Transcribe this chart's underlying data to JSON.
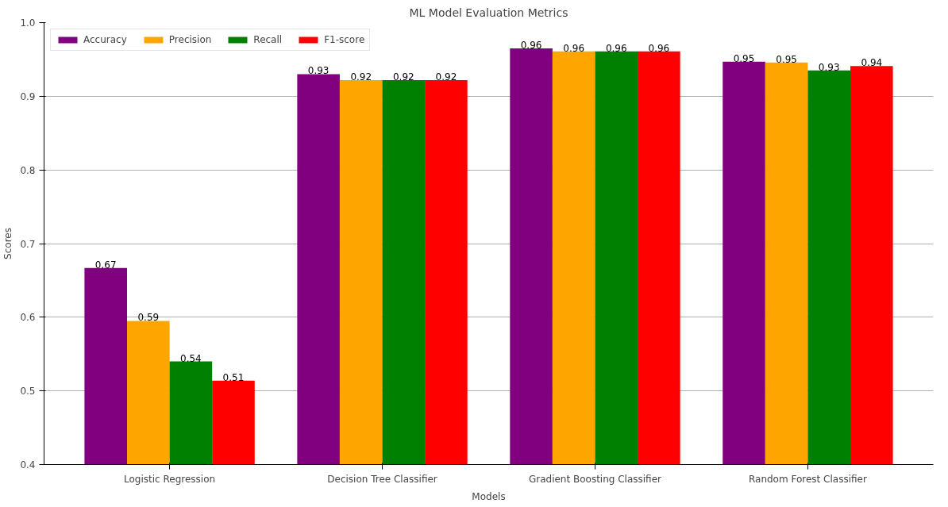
{
  "chart_data": {
    "type": "bar",
    "title": "ML Model Evaluation Metrics",
    "xlabel": "Models",
    "ylabel": "Scores",
    "categories": [
      "Logistic Regression",
      "Decision Tree Classifier",
      "Gradient Boosting Classifier",
      "Random Forest Classifier"
    ],
    "series": [
      {
        "name": "Accuracy",
        "color": "#800080",
        "values": [
          0.667,
          0.93,
          0.965,
          0.947
        ],
        "value_labels": [
          "0.67",
          "0.93",
          "0.96",
          "0.95"
        ]
      },
      {
        "name": "Precision",
        "color": "#ffa500",
        "values": [
          0.595,
          0.922,
          0.961,
          0.946
        ],
        "value_labels": [
          "0.59",
          "0.92",
          "0.96",
          "0.95"
        ]
      },
      {
        "name": "Recall",
        "color": "#008000",
        "values": [
          0.54,
          0.922,
          0.961,
          0.935
        ],
        "value_labels": [
          "0.54",
          "0.92",
          "0.96",
          "0.93"
        ]
      },
      {
        "name": "F1-score",
        "color": "#ff0000",
        "values": [
          0.514,
          0.922,
          0.961,
          0.941
        ],
        "value_labels": [
          "0.51",
          "0.92",
          "0.96",
          "0.94"
        ]
      }
    ],
    "ylim": [
      0.4,
      1.0
    ],
    "yticks": [
      0.4,
      0.5,
      0.6,
      0.7,
      0.8,
      0.9,
      {
        "value": 1,
        "label": "1.0"
      }
    ],
    "grid": "y",
    "legend": "top left"
  }
}
